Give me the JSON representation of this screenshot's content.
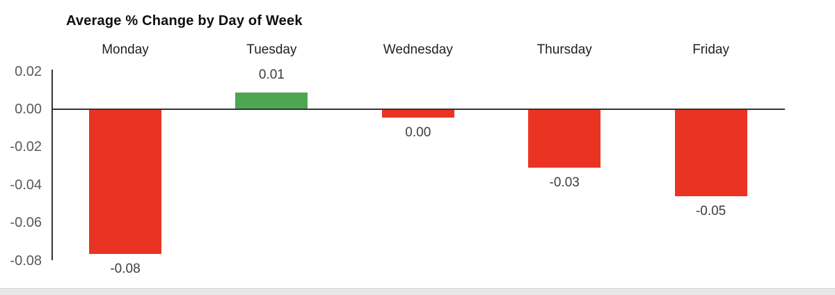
{
  "title": "Average % Change by Day of Week",
  "colors": {
    "positive_bar": "#4DA651",
    "negative_bar": "#EA3423",
    "axis": "#333333",
    "tick_text": "#595959",
    "value_text": "#3d3d3d",
    "category_text": "#1f1f1f",
    "title_text": "#0f0f0f",
    "footer_strip": "#e7e7e7"
  },
  "chart_data": {
    "type": "bar",
    "title": "Average % Change by Day of Week",
    "categories": [
      "Monday",
      "Tuesday",
      "Wednesday",
      "Thursday",
      "Friday"
    ],
    "values": [
      -0.0765,
      0.009,
      -0.0045,
      -0.031,
      -0.046
    ],
    "value_labels": [
      "-0.08",
      "0.01",
      "0.00",
      "-0.03",
      "-0.05"
    ],
    "bar_colors": [
      "#EA3423",
      "#4DA651",
      "#EA3423",
      "#EA3423",
      "#EA3423"
    ],
    "xlabel": "",
    "ylabel": "",
    "ylim": [
      -0.08,
      0.02
    ],
    "yticks": [
      0.02,
      0.0,
      -0.02,
      -0.04,
      -0.06,
      -0.08
    ],
    "ytick_labels": [
      "0.02",
      "0.00",
      "-0.02",
      "-0.04",
      "-0.06",
      "-0.08"
    ],
    "grid": false,
    "legend": false,
    "zero_line": true
  }
}
